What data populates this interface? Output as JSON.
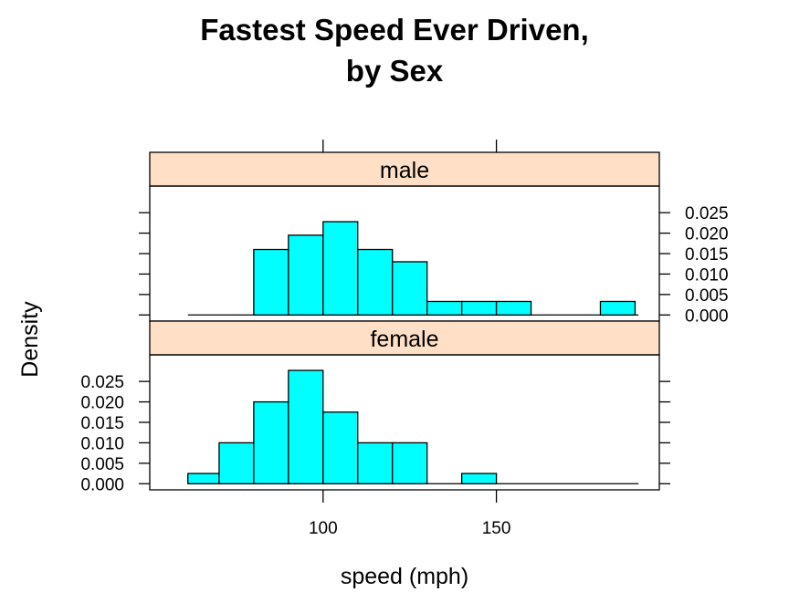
{
  "chart_data": {
    "type": "bar",
    "title": [
      "Fastest Speed Ever Driven,",
      "by Sex"
    ],
    "xlabel": "speed (mph)",
    "ylabel": "Density",
    "xlim": [
      50,
      197
    ],
    "ylim": [
      -0.0015,
      0.0315
    ],
    "x_ticks": [
      100,
      150
    ],
    "y_ticks": [
      "0.000",
      "0.005",
      "0.010",
      "0.015",
      "0.020",
      "0.025"
    ],
    "bin_width": 10,
    "baseline_range": [
      61,
      191
    ],
    "grid": false,
    "colors": {
      "bar_fill": "#00ffff",
      "strip_fill": "#ffe0c7",
      "line": "#000000"
    },
    "panels": [
      {
        "strip": "male",
        "bins": [
          {
            "x0": 80,
            "density": 0.016
          },
          {
            "x0": 90,
            "density": 0.0195
          },
          {
            "x0": 100,
            "density": 0.0228
          },
          {
            "x0": 110,
            "density": 0.016
          },
          {
            "x0": 120,
            "density": 0.013
          },
          {
            "x0": 130,
            "density": 0.0033
          },
          {
            "x0": 140,
            "density": 0.0033
          },
          {
            "x0": 150,
            "density": 0.0033
          },
          {
            "x0": 180,
            "density": 0.0033
          }
        ]
      },
      {
        "strip": "female",
        "bins": [
          {
            "x0": 61,
            "density": 0.0025
          },
          {
            "x0": 70,
            "density": 0.01
          },
          {
            "x0": 80,
            "density": 0.02
          },
          {
            "x0": 90,
            "density": 0.0277
          },
          {
            "x0": 100,
            "density": 0.0175
          },
          {
            "x0": 110,
            "density": 0.01
          },
          {
            "x0": 120,
            "density": 0.01
          },
          {
            "x0": 140,
            "density": 0.0025
          }
        ]
      }
    ]
  }
}
